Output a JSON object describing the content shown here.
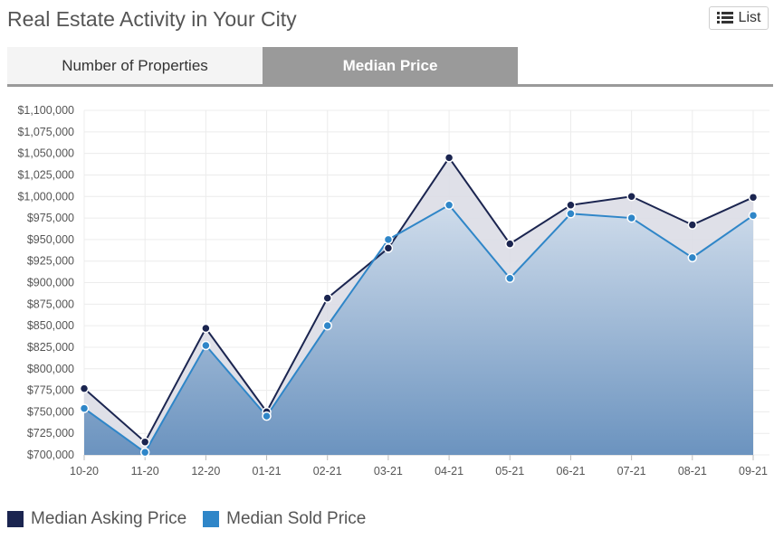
{
  "header": {
    "title": "Real Estate Activity in Your City",
    "list_label": "List",
    "list_icon": "list-icon"
  },
  "tabs": [
    {
      "label": "Number of Properties",
      "active": false
    },
    {
      "label": "Median Price",
      "active": true
    }
  ],
  "colors": {
    "asking": "#1b2550",
    "sold": "#2f86c8",
    "tab_active": "#9a9a9a"
  },
  "chart_data": {
    "type": "area",
    "categories": [
      "10-20",
      "11-20",
      "12-20",
      "01-21",
      "02-21",
      "03-21",
      "04-21",
      "05-21",
      "06-21",
      "07-21",
      "08-21",
      "09-21"
    ],
    "series": [
      {
        "name": "Median Asking Price",
        "values": [
          777000,
          715000,
          847000,
          750000,
          882000,
          940000,
          1045000,
          945000,
          990000,
          1000000,
          967000,
          999000
        ]
      },
      {
        "name": "Median Sold Price",
        "values": [
          754000,
          703000,
          827000,
          745000,
          850000,
          950000,
          990000,
          905000,
          980000,
          975000,
          929000,
          978000
        ]
      }
    ],
    "ylim": [
      700000,
      1100000
    ],
    "yticks": [
      "$1,100,000",
      "$1,075,000",
      "$1,050,000",
      "$1,025,000",
      "$1,000,000",
      "$975,000",
      "$950,000",
      "$925,000",
      "$900,000",
      "$875,000",
      "$850,000",
      "$825,000",
      "$800,000",
      "$775,000",
      "$750,000",
      "$725,000",
      "$700,000"
    ],
    "ytick_values": [
      1100000,
      1075000,
      1050000,
      1025000,
      1000000,
      975000,
      950000,
      925000,
      900000,
      875000,
      850000,
      825000,
      800000,
      775000,
      750000,
      725000,
      700000
    ],
    "grid": true,
    "legend_position": "bottom-left"
  }
}
